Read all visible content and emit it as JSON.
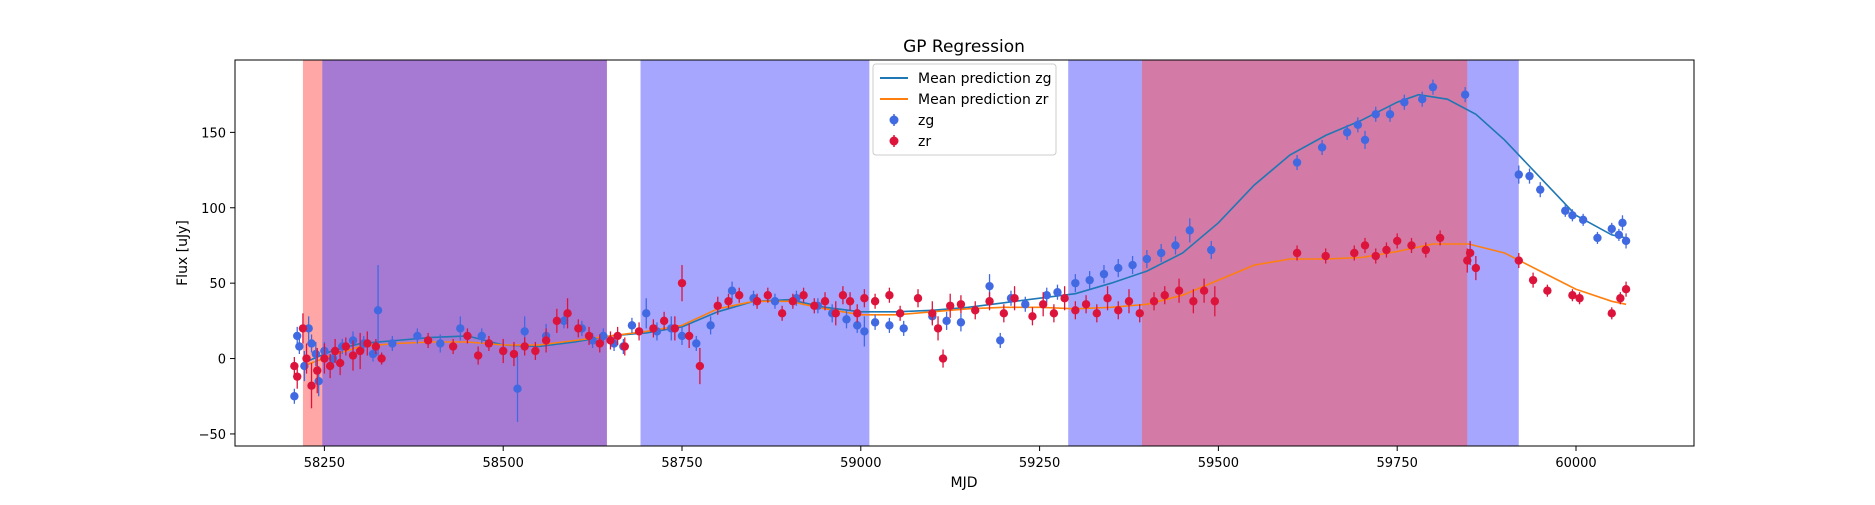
{
  "chart_data": {
    "type": "scatter",
    "title": "GP Regression",
    "xlabel": "MJD",
    "ylabel": "Flux [uJy]",
    "xlim": [
      58125,
      60165
    ],
    "ylim": [
      -58,
      198
    ],
    "xticks": [
      58250,
      58500,
      58750,
      59000,
      59250,
      59500,
      59750,
      60000
    ],
    "xtick_labels": [
      "58250",
      "58500",
      "58750",
      "59000",
      "59250",
      "59500",
      "59750",
      "60000"
    ],
    "yticks": [
      -50,
      0,
      50,
      100,
      150
    ],
    "ytick_labels": [
      "−50",
      "0",
      "50",
      "100",
      "150"
    ],
    "grid": false,
    "legend": {
      "position": "top-center",
      "entries": [
        {
          "label": "Mean prediction zg",
          "kind": "line",
          "color": "#1f77b4"
        },
        {
          "label": "Mean prediction zr",
          "kind": "line",
          "color": "#ff7f0e"
        },
        {
          "label": "zg",
          "kind": "errorpoint",
          "color": "#4169e1"
        },
        {
          "label": "zr",
          "kind": "errorpoint",
          "color": "#dc143c"
        }
      ]
    },
    "shaded_spans": [
      {
        "x0": 58220,
        "x1": 58247,
        "color": "#ff4d4d",
        "opacity": 0.5
      },
      {
        "x0": 58247,
        "x1": 58645,
        "color": "#ff4d4d",
        "opacity": 0.5
      },
      {
        "x0": 58247,
        "x1": 58645,
        "color": "#4d4dff",
        "opacity": 0.5
      },
      {
        "x0": 58692,
        "x1": 59012,
        "color": "#4d4dff",
        "opacity": 0.5
      },
      {
        "x0": 59290,
        "x1": 59393,
        "color": "#4d4dff",
        "opacity": 0.5
      },
      {
        "x0": 59393,
        "x1": 59848,
        "color": "#4d4dff",
        "opacity": 0.5
      },
      {
        "x0": 59393,
        "x1": 59848,
        "color": "#ff4d4d",
        "opacity": 0.5
      },
      {
        "x0": 59848,
        "x1": 59920,
        "color": "#4d4dff",
        "opacity": 0.5
      }
    ],
    "series": [
      {
        "name": "Mean prediction zg",
        "kind": "line",
        "color": "#1f77b4",
        "x": [
          58220,
          58260,
          58300,
          58350,
          58400,
          58450,
          58500,
          58550,
          58600,
          58650,
          58700,
          58750,
          58800,
          58850,
          58900,
          58950,
          59000,
          59050,
          59100,
          59150,
          59200,
          59250,
          59300,
          59350,
          59400,
          59450,
          59500,
          59550,
          59600,
          59650,
          59700,
          59750,
          59780,
          59820,
          59860,
          59900,
          59950,
          60000,
          60050,
          60070
        ],
        "y": [
          -3,
          5,
          10,
          12,
          14,
          15,
          9,
          8,
          11,
          15,
          17,
          21,
          31,
          38,
          39,
          34,
          31,
          31,
          32,
          34,
          37,
          40,
          43,
          50,
          58,
          70,
          90,
          115,
          135,
          148,
          158,
          170,
          175,
          172,
          162,
          145,
          120,
          95,
          82,
          80
        ]
      },
      {
        "name": "Mean prediction zr",
        "kind": "line",
        "color": "#ff7f0e",
        "x": [
          58220,
          58260,
          58300,
          58350,
          58400,
          58450,
          58500,
          58550,
          58600,
          58650,
          58700,
          58750,
          58800,
          58850,
          58900,
          58950,
          59000,
          59050,
          59100,
          59150,
          59200,
          59250,
          59300,
          59350,
          59400,
          59450,
          59500,
          59550,
          59600,
          59650,
          59700,
          59750,
          59800,
          59850,
          59900,
          59950,
          60000,
          60050,
          60070
        ],
        "y": [
          -5,
          2,
          8,
          10,
          11,
          11,
          9,
          9,
          12,
          15,
          18,
          22,
          33,
          38,
          38,
          33,
          29,
          29,
          31,
          33,
          34,
          34,
          33,
          34,
          36,
          42,
          52,
          62,
          66,
          66,
          67,
          71,
          76,
          76,
          70,
          58,
          46,
          38,
          36
        ]
      },
      {
        "name": "zg",
        "kind": "errorpoints",
        "color": "#4169e1",
        "x": [
          58208,
          58212,
          58215,
          58222,
          58228,
          58232,
          58238,
          58242,
          58250,
          58262,
          58275,
          58290,
          58305,
          58318,
          58325,
          58345,
          58380,
          58412,
          58440,
          58470,
          58500,
          58520,
          58530,
          58560,
          58585,
          58610,
          58625,
          58640,
          58655,
          58668,
          58680,
          58700,
          58715,
          58735,
          58750,
          58770,
          58790,
          58820,
          58850,
          58880,
          58910,
          58940,
          58960,
          58980,
          58995,
          59005,
          59020,
          59040,
          59060,
          59100,
          59120,
          59140,
          59180,
          59195,
          59210,
          59230,
          59260,
          59275,
          59300,
          59320,
          59340,
          59360,
          59380,
          59400,
          59420,
          59440,
          59460,
          59490,
          59610,
          59645,
          59680,
          59695,
          59705,
          59720,
          59740,
          59760,
          59785,
          59800,
          59845,
          59920,
          59935,
          59950,
          59985,
          59995,
          60010,
          60030,
          60050,
          60060,
          60065,
          60070
        ],
        "y": [
          -25,
          15,
          8,
          -5,
          20,
          10,
          3,
          -15,
          5,
          0,
          8,
          12,
          10,
          3,
          32,
          10,
          15,
          10,
          20,
          15,
          5,
          -20,
          18,
          15,
          25,
          20,
          12,
          15,
          10,
          8,
          22,
          30,
          18,
          20,
          15,
          10,
          22,
          45,
          40,
          38,
          40,
          35,
          30,
          26,
          22,
          18,
          24,
          22,
          20,
          28,
          25,
          24,
          48,
          12,
          40,
          36,
          42,
          44,
          50,
          52,
          56,
          60,
          62,
          66,
          70,
          75,
          85,
          72,
          130,
          140,
          150,
          155,
          145,
          162,
          162,
          170,
          172,
          180,
          175,
          122,
          121,
          112,
          98,
          95,
          92,
          80,
          86,
          82,
          90,
          78
        ],
        "err": [
          5,
          6,
          5,
          10,
          8,
          6,
          8,
          10,
          6,
          5,
          5,
          6,
          5,
          5,
          30,
          5,
          5,
          6,
          8,
          5,
          6,
          22,
          10,
          8,
          5,
          5,
          5,
          5,
          5,
          5,
          5,
          10,
          6,
          8,
          6,
          5,
          6,
          6,
          5,
          5,
          5,
          5,
          6,
          6,
          5,
          10,
          5,
          5,
          5,
          5,
          6,
          6,
          8,
          5,
          5,
          5,
          5,
          5,
          6,
          6,
          6,
          6,
          6,
          6,
          6,
          6,
          8,
          6,
          5,
          5,
          5,
          5,
          6,
          5,
          5,
          5,
          5,
          5,
          5,
          6,
          5,
          5,
          4,
          4,
          4,
          4,
          4,
          4,
          5,
          5
        ]
      },
      {
        "name": "zr",
        "kind": "errorpoints",
        "color": "#dc143c",
        "x": [
          58208,
          58212,
          58220,
          58225,
          58232,
          58240,
          58250,
          58258,
          58265,
          58272,
          58280,
          58290,
          58300,
          58310,
          58322,
          58330,
          58395,
          58430,
          58450,
          58465,
          58480,
          58500,
          58515,
          58530,
          58545,
          58560,
          58575,
          58590,
          58605,
          58620,
          58635,
          58650,
          58660,
          58670,
          58690,
          58710,
          58725,
          58740,
          58750,
          58760,
          58775,
          58800,
          58815,
          58830,
          58855,
          58870,
          58890,
          58905,
          58920,
          58935,
          58950,
          58965,
          58975,
          58985,
          58995,
          59005,
          59020,
          59040,
          59055,
          59080,
          59100,
          59108,
          59115,
          59125,
          59140,
          59160,
          59180,
          59200,
          59215,
          59240,
          59255,
          59270,
          59285,
          59300,
          59315,
          59330,
          59345,
          59360,
          59375,
          59390,
          59410,
          59425,
          59445,
          59465,
          59480,
          59495,
          59610,
          59650,
          59690,
          59705,
          59720,
          59735,
          59750,
          59770,
          59790,
          59810,
          59848,
          59852,
          59860,
          59920,
          59940,
          59960,
          59995,
          60005,
          60050,
          60062,
          60070
        ],
        "y": [
          -5,
          -12,
          20,
          0,
          -18,
          -8,
          0,
          -5,
          5,
          -3,
          8,
          2,
          5,
          10,
          8,
          0,
          12,
          8,
          15,
          2,
          10,
          5,
          3,
          8,
          5,
          12,
          25,
          30,
          20,
          15,
          10,
          12,
          15,
          8,
          18,
          20,
          25,
          20,
          50,
          15,
          -5,
          35,
          38,
          42,
          38,
          42,
          30,
          38,
          42,
          35,
          38,
          30,
          42,
          38,
          30,
          40,
          38,
          42,
          30,
          40,
          30,
          20,
          0,
          35,
          36,
          32,
          38,
          30,
          40,
          28,
          36,
          30,
          40,
          32,
          36,
          30,
          40,
          32,
          38,
          30,
          38,
          42,
          45,
          38,
          45,
          38,
          70,
          68,
          70,
          75,
          68,
          72,
          78,
          75,
          72,
          80,
          65,
          70,
          60,
          65,
          52,
          45,
          42,
          40,
          30,
          40,
          46
        ],
        "err": [
          6,
          8,
          10,
          10,
          15,
          15,
          10,
          8,
          8,
          8,
          6,
          10,
          12,
          8,
          5,
          4,
          5,
          5,
          5,
          6,
          5,
          8,
          8,
          6,
          6,
          8,
          8,
          10,
          6,
          6,
          6,
          6,
          6,
          6,
          6,
          6,
          6,
          8,
          12,
          8,
          12,
          6,
          5,
          5,
          5,
          5,
          5,
          5,
          5,
          5,
          6,
          8,
          6,
          6,
          6,
          6,
          5,
          5,
          5,
          6,
          8,
          8,
          6,
          8,
          6,
          6,
          6,
          6,
          8,
          6,
          8,
          6,
          8,
          6,
          6,
          6,
          8,
          6,
          8,
          6,
          6,
          6,
          8,
          8,
          8,
          10,
          5,
          5,
          5,
          5,
          5,
          5,
          5,
          5,
          5,
          5,
          8,
          8,
          8,
          5,
          5,
          4,
          4,
          4,
          4,
          4,
          5
        ]
      }
    ]
  }
}
